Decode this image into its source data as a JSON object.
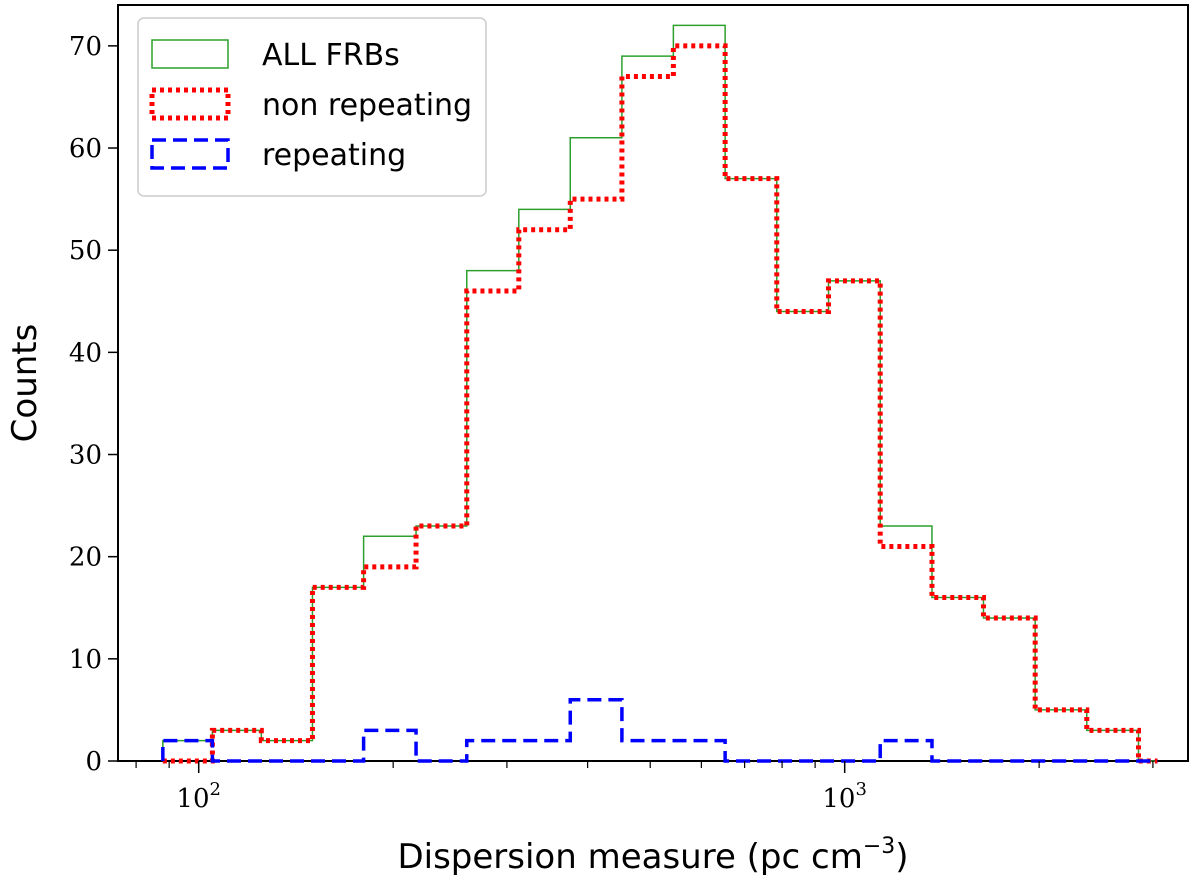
{
  "chart_data": {
    "type": "histogram",
    "title": "",
    "xlabel": "Dispersion measure (pc cm",
    "xlabel_sup": "−3",
    "xlabel_close": ")",
    "ylabel": "Counts",
    "xscale": "log",
    "xlim": [
      75,
      3400
    ],
    "ylim": [
      0,
      74
    ],
    "yticks": [
      0,
      10,
      20,
      30,
      40,
      50,
      60,
      70
    ],
    "xticks_major": [
      {
        "value": 100,
        "base": "10",
        "exp": "2"
      },
      {
        "value": 1000,
        "base": "10",
        "exp": "3"
      }
    ],
    "bin_edges": [
      88,
      105,
      125,
      150,
      180,
      217,
      260,
      313,
      376,
      452,
      543,
      653,
      785,
      944,
      1135,
      1365,
      1640,
      1972,
      2370,
      2850,
      3050
    ],
    "series": [
      {
        "name": "ALL FRBs",
        "style": "solid",
        "color": "#2ca02c",
        "values": [
          2,
          3,
          2,
          17,
          22,
          23,
          48,
          54,
          61,
          69,
          72,
          57,
          44,
          47,
          23,
          16,
          14,
          5,
          3,
          0
        ]
      },
      {
        "name": "non repeating",
        "style": "dotted",
        "color": "#ff0000",
        "values": [
          0,
          3,
          2,
          17,
          19,
          23,
          46,
          52,
          55,
          67,
          70,
          57,
          44,
          47,
          21,
          16,
          14,
          5,
          3,
          0
        ]
      },
      {
        "name": "repeating",
        "style": "dashed",
        "color": "#0000ff",
        "values": [
          2,
          0,
          0,
          0,
          3,
          0,
          2,
          2,
          6,
          2,
          2,
          0,
          0,
          0,
          2,
          0,
          0,
          0,
          0,
          0
        ]
      }
    ],
    "grid": false,
    "legend_position": "top-left"
  }
}
